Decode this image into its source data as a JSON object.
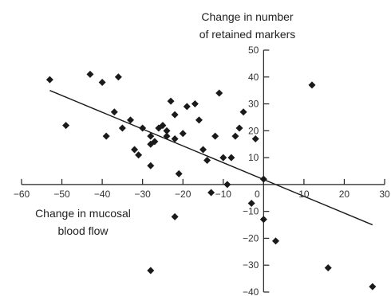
{
  "chart_data": {
    "type": "scatter",
    "title": "",
    "xlabel": [
      "Change in mucosal",
      "blood flow"
    ],
    "ylabel": [
      "Change in number",
      "of retained markers"
    ],
    "xlim": [
      -60,
      30
    ],
    "ylim": [
      -40,
      50
    ],
    "x_ticks": [
      -60,
      -50,
      -40,
      -30,
      -20,
      -10,
      0,
      10,
      20,
      30
    ],
    "y_ticks": [
      -40,
      -30,
      -20,
      -10,
      10,
      20,
      30,
      40,
      50
    ],
    "x_tick_labels": [
      "−60",
      "−50",
      "−40",
      "−30",
      "−20",
      "−10",
      "0",
      "10",
      "20",
      "30"
    ],
    "y_tick_labels": [
      "−40",
      "−30",
      "−20",
      "−10",
      "10",
      "20",
      "30",
      "40",
      "50"
    ],
    "grid": false,
    "marker": "diamond",
    "marker_color": "#1a1a1a",
    "line_color": "#1a1a1a",
    "points": [
      {
        "x": -53,
        "y": 39
      },
      {
        "x": -49,
        "y": 22
      },
      {
        "x": -43,
        "y": 41
      },
      {
        "x": -40,
        "y": 38
      },
      {
        "x": -39,
        "y": 18
      },
      {
        "x": -36,
        "y": 40
      },
      {
        "x": -37,
        "y": 27
      },
      {
        "x": -35,
        "y": 21
      },
      {
        "x": -33,
        "y": 24
      },
      {
        "x": -32,
        "y": 13
      },
      {
        "x": -31,
        "y": 11
      },
      {
        "x": -30,
        "y": 21
      },
      {
        "x": -28,
        "y": 18
      },
      {
        "x": -28,
        "y": 15
      },
      {
        "x": -27,
        "y": 16
      },
      {
        "x": -26,
        "y": 21
      },
      {
        "x": -25,
        "y": 22
      },
      {
        "x": -24,
        "y": 20
      },
      {
        "x": -24,
        "y": 18
      },
      {
        "x": -23,
        "y": 31
      },
      {
        "x": -22,
        "y": 26
      },
      {
        "x": -22,
        "y": 17
      },
      {
        "x": -21,
        "y": 4
      },
      {
        "x": -20,
        "y": 19
      },
      {
        "x": -19,
        "y": 29
      },
      {
        "x": -17,
        "y": 30
      },
      {
        "x": -16,
        "y": 24
      },
      {
        "x": -15,
        "y": 13
      },
      {
        "x": -14,
        "y": 9
      },
      {
        "x": -12,
        "y": 18
      },
      {
        "x": -11,
        "y": 34
      },
      {
        "x": -10,
        "y": 10
      },
      {
        "x": -9,
        "y": 0
      },
      {
        "x": -8,
        "y": 10
      },
      {
        "x": -7,
        "y": 18
      },
      {
        "x": -6,
        "y": 21
      },
      {
        "x": -5,
        "y": 27
      },
      {
        "x": -2,
        "y": 17
      },
      {
        "x": 0,
        "y": 2
      },
      {
        "x": 12,
        "y": 37
      },
      {
        "x": -28,
        "y": 7
      },
      {
        "x": -13,
        "y": -3
      },
      {
        "x": -22,
        "y": -12
      },
      {
        "x": -3,
        "y": -7
      },
      {
        "x": 0,
        "y": -13
      },
      {
        "x": 3,
        "y": -21
      },
      {
        "x": -28,
        "y": -32
      },
      {
        "x": 16,
        "y": -31
      },
      {
        "x": 27,
        "y": -38
      }
    ],
    "trend_line": {
      "x": [
        -53,
        27
      ],
      "y": [
        35,
        -15
      ]
    }
  }
}
